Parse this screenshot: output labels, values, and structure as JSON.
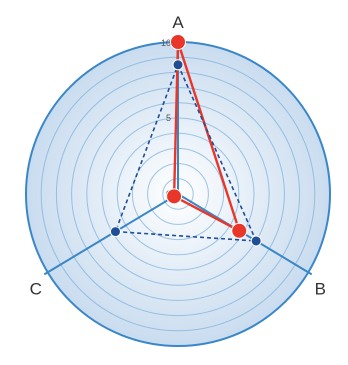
{
  "chart_data": {
    "type": "radar",
    "axes": [
      "A",
      "B",
      "C"
    ],
    "ticks": [
      "0",
      "5",
      "10"
    ],
    "range": [
      0,
      10
    ],
    "ring_count": 10,
    "grid": true,
    "series": [
      {
        "values": [
          10,
          4.7,
          0.3
        ],
        "style": "solid",
        "color": "#e8372a"
      },
      {
        "values": [
          8.5,
          6,
          4.8
        ],
        "style": "dashed",
        "color": "#1f4e96"
      }
    ],
    "colors": {
      "outer_ring": "#3a87c8",
      "spoke": "#3a87c8",
      "ring": "#7fb1de",
      "fill_center": "#ffffff",
      "fill_edge": "#c9dcef"
    }
  }
}
